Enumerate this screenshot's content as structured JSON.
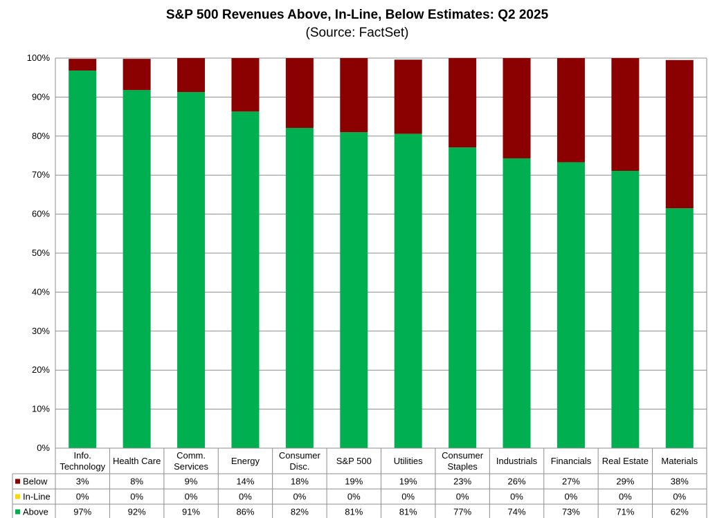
{
  "chart_data": {
    "type": "bar",
    "stacked": true,
    "title": "S&P 500 Revenues Above, In-Line, Below Estimates: Q2 2025",
    "subtitle": "(Source: FactSet)",
    "categories": [
      [
        "Info.",
        "Technology"
      ],
      [
        "Health Care"
      ],
      [
        "Comm.",
        "Services"
      ],
      [
        "Energy"
      ],
      [
        "Consumer",
        "Disc."
      ],
      [
        "S&P 500"
      ],
      [
        "Utilities"
      ],
      [
        "Consumer",
        "Staples"
      ],
      [
        "Industrials"
      ],
      [
        "Financials"
      ],
      [
        "Real Estate"
      ],
      [
        "Materials"
      ]
    ],
    "series": [
      {
        "name": "Below",
        "color": "#8b0000",
        "values": [
          3,
          8,
          9,
          14,
          18,
          19,
          19,
          23,
          26,
          27,
          29,
          38
        ],
        "labels": [
          "3%",
          "8%",
          "9%",
          "14%",
          "18%",
          "19%",
          "19%",
          "23%",
          "26%",
          "27%",
          "29%",
          "38%"
        ]
      },
      {
        "name": "In-Line",
        "color": "#ffd700",
        "values": [
          0,
          0,
          0,
          0,
          0,
          0,
          0,
          0,
          0,
          0,
          0,
          0
        ],
        "labels": [
          "0%",
          "0%",
          "0%",
          "0%",
          "0%",
          "0%",
          "0%",
          "0%",
          "0%",
          "0%",
          "0%",
          "0%"
        ]
      },
      {
        "name": "Above",
        "color": "#00b050",
        "values": [
          96.8,
          91.8,
          91.3,
          86.3,
          82.1,
          81,
          80.6,
          77.1,
          74.3,
          73.3,
          71.1,
          61.5
        ],
        "labels": [
          "97%",
          "92%",
          "91%",
          "86%",
          "82%",
          "81%",
          "81%",
          "77%",
          "74%",
          "73%",
          "71%",
          "62%"
        ]
      }
    ],
    "ylim": [
      0,
      100
    ],
    "yticks": [
      "0%",
      "10%",
      "20%",
      "30%",
      "40%",
      "50%",
      "60%",
      "70%",
      "80%",
      "90%",
      "100%"
    ],
    "grid": true,
    "legend": "data-table"
  }
}
